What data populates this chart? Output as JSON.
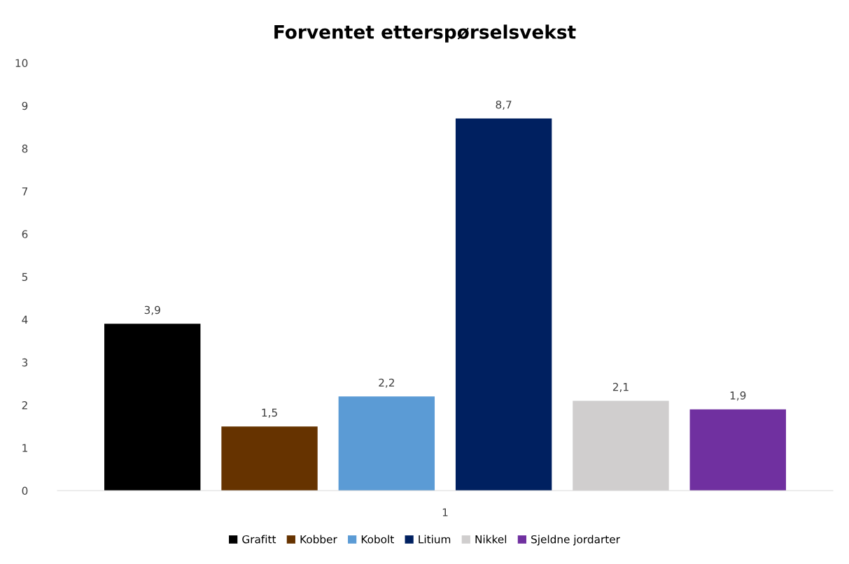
{
  "chart_data": {
    "type": "bar",
    "title": "Forventet etterspørselsvekst",
    "categories": [
      "1"
    ],
    "series": [
      {
        "name": "Grafitt",
        "color": "#000000",
        "values": [
          3.9
        ],
        "value_labels": [
          "3,9"
        ]
      },
      {
        "name": "Kobber",
        "color": "#663300",
        "values": [
          1.5
        ],
        "value_labels": [
          "1,5"
        ]
      },
      {
        "name": "Kobolt",
        "color": "#5b9bd5",
        "values": [
          2.2
        ],
        "value_labels": [
          "2,2"
        ]
      },
      {
        "name": "Litium",
        "color": "#002060",
        "values": [
          8.7
        ],
        "value_labels": [
          "8,7"
        ]
      },
      {
        "name": "Nikkel",
        "color": "#d0cece",
        "values": [
          2.1
        ],
        "value_labels": [
          "2,1"
        ]
      },
      {
        "name": "Sjeldne jordarter",
        "color": "#7030a0",
        "values": [
          1.9
        ],
        "value_labels": [
          "1,9"
        ]
      }
    ],
    "ylim": [
      0,
      10
    ],
    "yticks": [
      0,
      1,
      2,
      3,
      4,
      5,
      6,
      7,
      8,
      9,
      10
    ],
    "grid": false,
    "legend": "bottom"
  }
}
